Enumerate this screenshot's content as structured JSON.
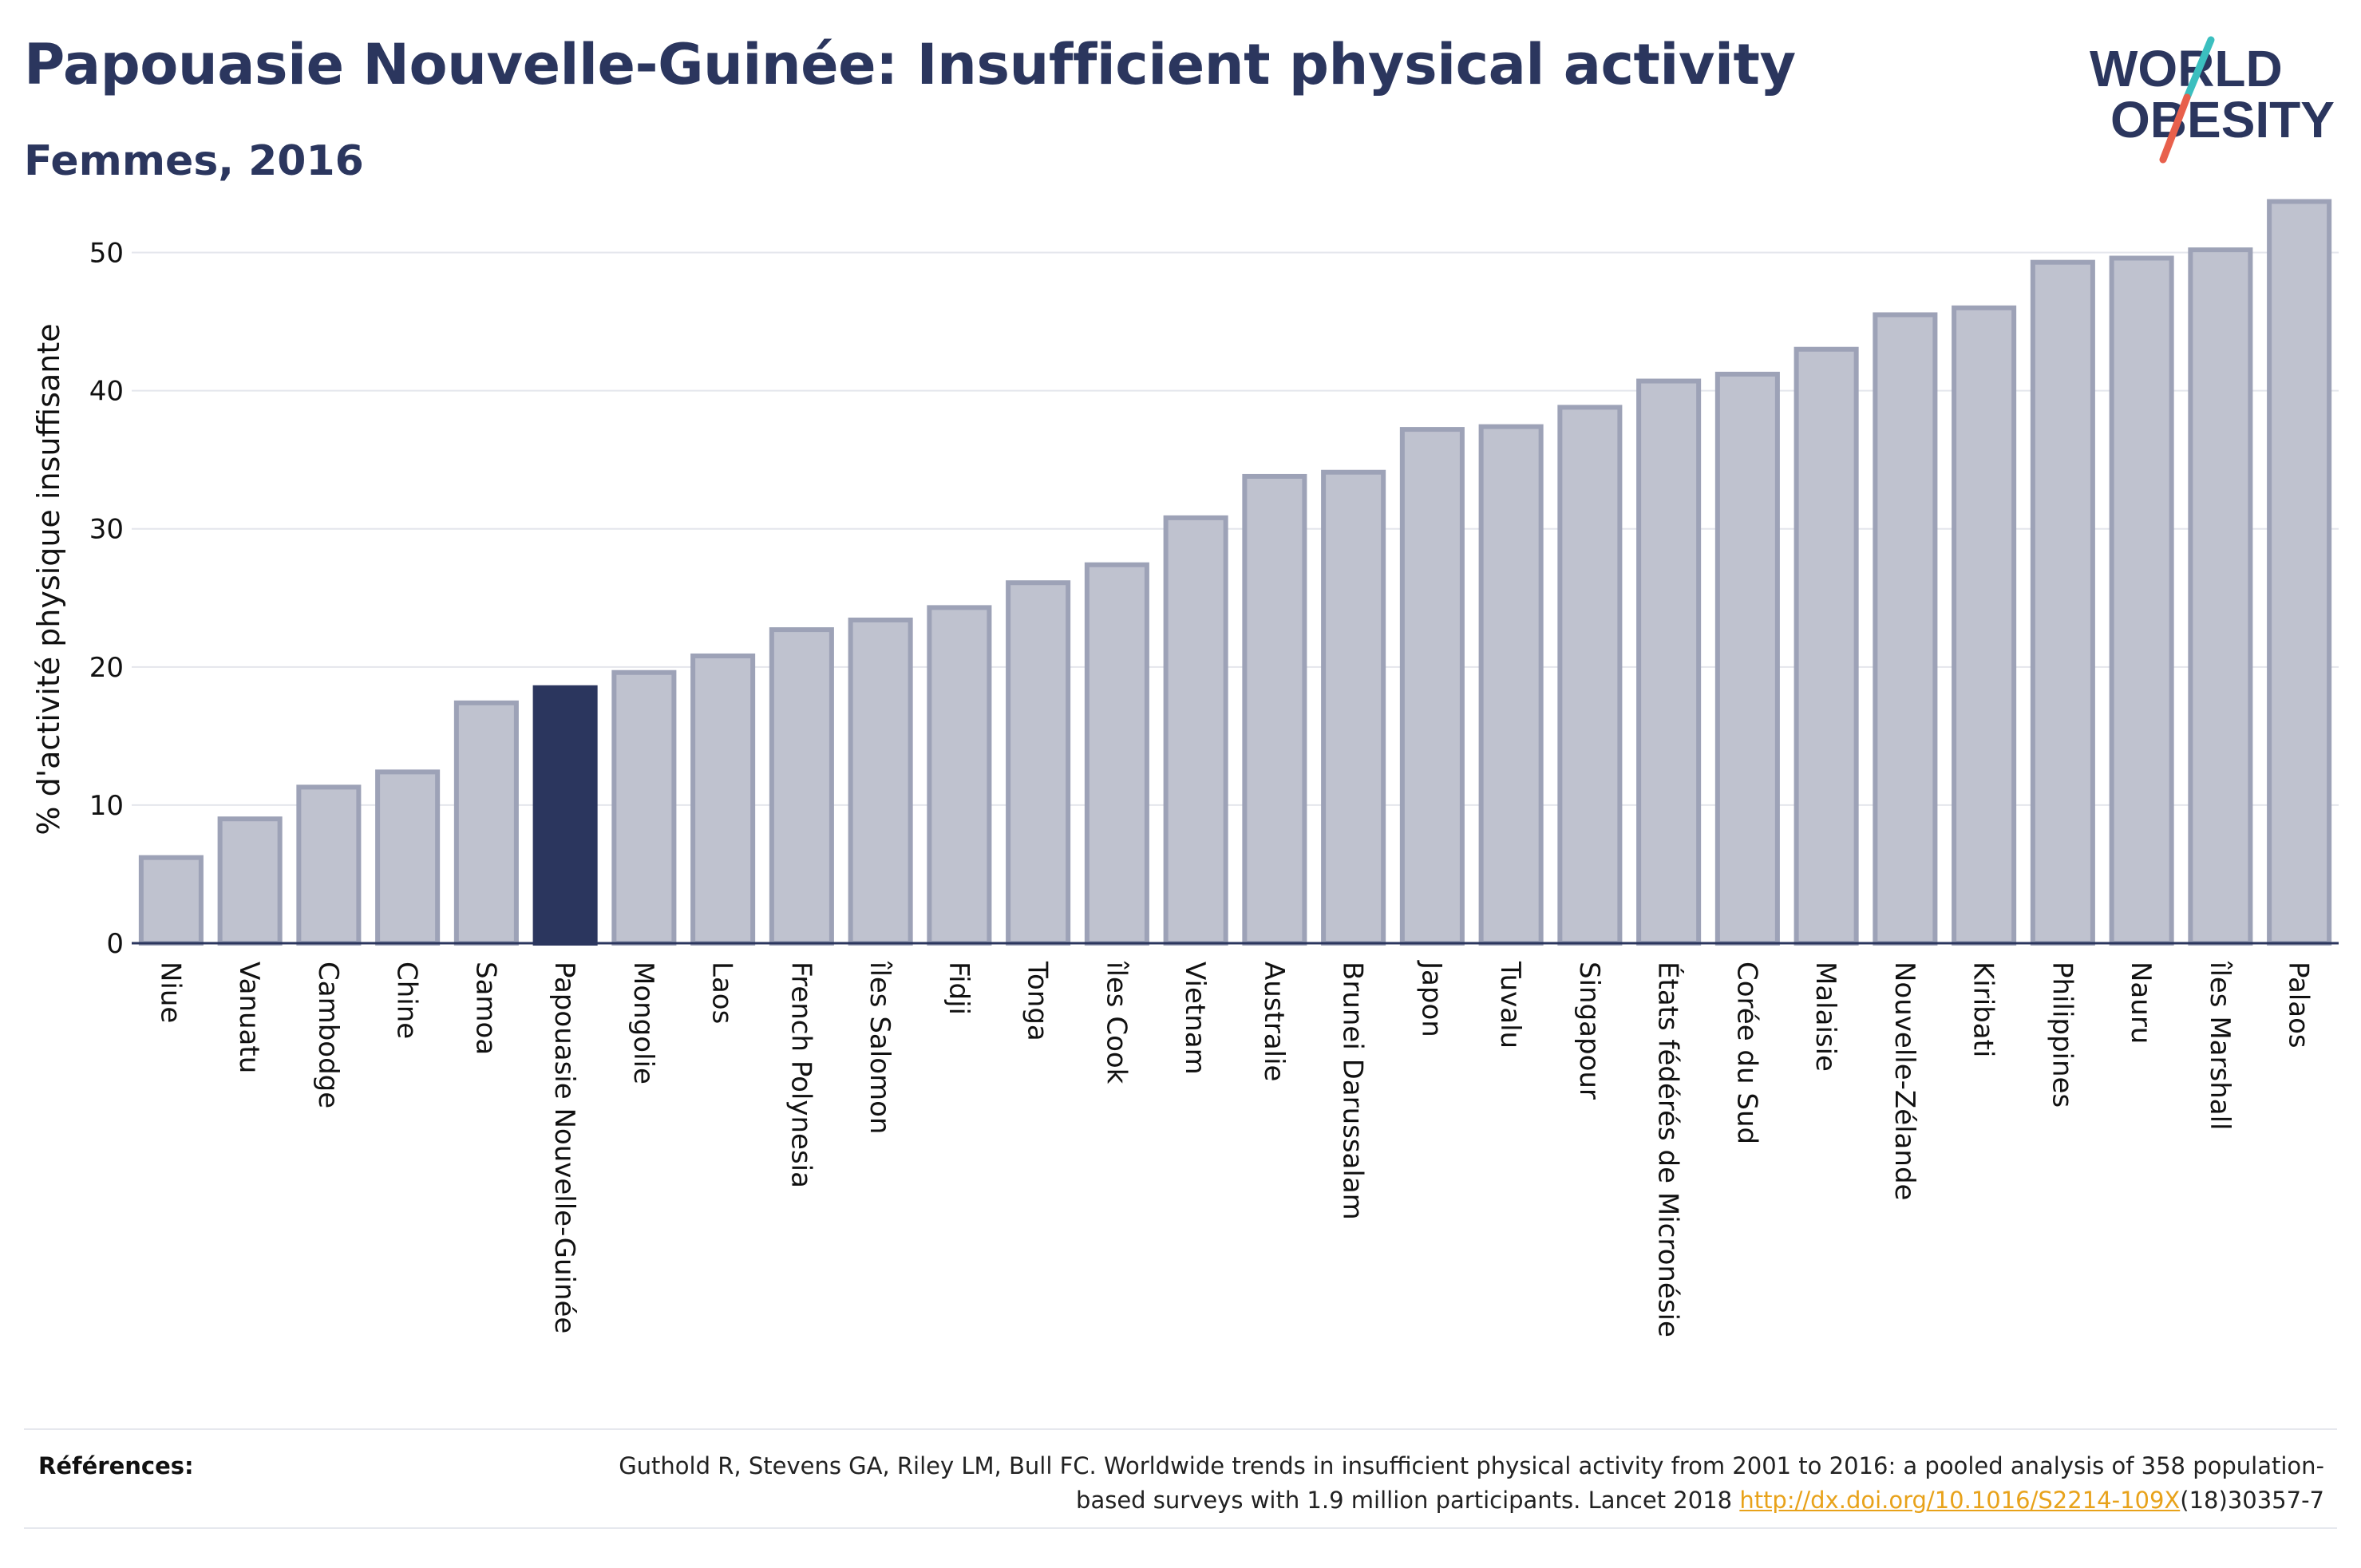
{
  "header": {
    "title": "Papouasie Nouvelle-Guinée: Insufficient physical activity",
    "subtitle": "Femmes, 2016"
  },
  "logo": {
    "line1": "WORLD",
    "line2": "OBESITY",
    "accent_colors": [
      "#3bbfbf",
      "#e8604c"
    ]
  },
  "colors": {
    "bar": "#bfc2cf",
    "bar_border": "#9da2b7",
    "highlight": "#2b365e",
    "grid": "#e4e6ec",
    "axis": "#2b365e",
    "link": "#e8a21a"
  },
  "chart_data": {
    "type": "bar",
    "ylabel": "% d'activité physique insuffisante",
    "ylim": [
      0,
      55
    ],
    "yticks": [
      0,
      10,
      20,
      30,
      40,
      50
    ],
    "grid": true,
    "highlight_category": "Papouasie Nouvelle-Guinée",
    "categories": [
      "Niue",
      "Vanuatu",
      "Cambodge",
      "Chine",
      "Samoa",
      "Papouasie Nouvelle-Guinée",
      "Mongolie",
      "Laos",
      "French Polynesia",
      "îles Salomon",
      "Fidji",
      "Tonga",
      "îles Cook",
      "Vietnam",
      "Australie",
      "Brunei Darussalam",
      "Japon",
      "Tuvalu",
      "Singapour",
      "États fédérés de Micronésie",
      "Corée du Sud",
      "Malaisie",
      "Nouvelle-Zélande",
      "Kiribati",
      "Philippines",
      "Nauru",
      "îles Marshall",
      "Palaos"
    ],
    "values": [
      6.2,
      9.0,
      11.3,
      12.4,
      17.4,
      18.5,
      19.6,
      20.8,
      22.7,
      23.4,
      24.3,
      26.1,
      27.4,
      30.8,
      33.8,
      34.1,
      37.2,
      37.4,
      38.8,
      40.7,
      41.2,
      43.0,
      45.5,
      46.0,
      49.3,
      49.6,
      50.2,
      53.7
    ]
  },
  "references": {
    "label": "Références:",
    "text_before_link": "Guthold R, Stevens GA, Riley LM, Bull FC. Worldwide trends in insufficient physical activity from 2001 to 2016: a pooled analysis of 358 population-based surveys with 1.9 million participants. Lancet 2018 ",
    "link": "http://dx.doi.org/10.1016/S2214-109X",
    "text_after_link": "(18)30357-7"
  }
}
